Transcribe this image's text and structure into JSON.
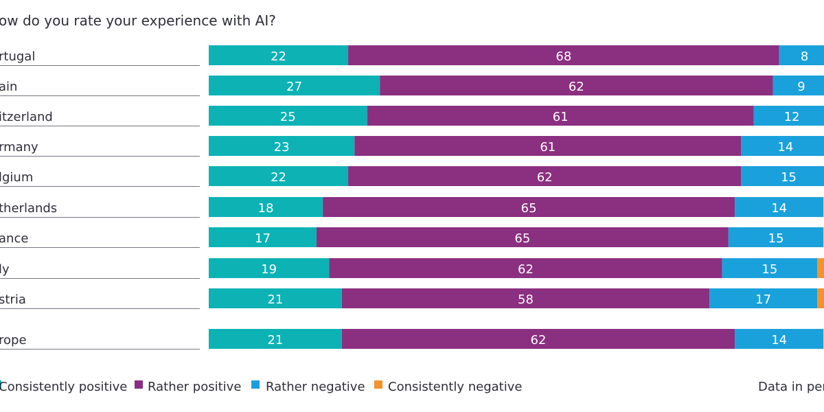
{
  "chart_data": {
    "type": "bar",
    "orientation": "horizontal",
    "stacked": true,
    "title": "ow do you rate your experience with AI?",
    "categories": [
      "rtugal",
      "ain",
      "itzerland",
      "rmany",
      "lgium",
      "therlands",
      "ance",
      "ly",
      "stria",
      "rope"
    ],
    "series": [
      {
        "name": "Consistently positive",
        "color": "#0db2b5",
        "values": [
          22,
          27,
          25,
          23,
          22,
          18,
          17,
          19,
          21,
          21
        ]
      },
      {
        "name": "Rather positive",
        "color": "#8b2f80",
        "values": [
          68,
          62,
          61,
          61,
          62,
          65,
          65,
          62,
          58,
          62
        ]
      },
      {
        "name": "Rather negative",
        "color": "#1aa1db",
        "values": [
          8,
          9,
          12,
          14,
          15,
          14,
          15,
          15,
          17,
          14
        ]
      },
      {
        "name": "Consistently negative",
        "color": "#f4922d",
        "values": [
          null,
          null,
          null,
          null,
          null,
          null,
          null,
          4,
          4,
          null
        ]
      }
    ],
    "xlim": [
      0,
      100
    ],
    "grid": false,
    "legend_position": "bottom",
    "note": "Data in perc"
  }
}
